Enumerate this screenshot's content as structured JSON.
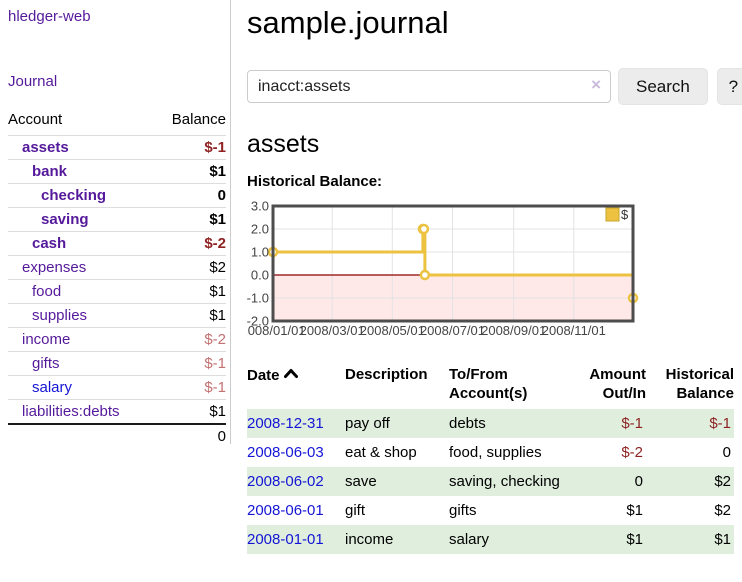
{
  "sidebar": {
    "brand": "hledger-web",
    "journal_link": "Journal",
    "accounts_table": {
      "headers": {
        "account": "Account",
        "balance": "Balance"
      },
      "rows": [
        {
          "name": "assets",
          "balance": "$-1",
          "depth": 1,
          "bold": true
        },
        {
          "name": "bank",
          "balance": "$1",
          "depth": 2,
          "bold": true
        },
        {
          "name": "checking",
          "balance": "0",
          "depth": 3,
          "bold": true
        },
        {
          "name": "saving",
          "balance": "$1",
          "depth": 3,
          "bold": true
        },
        {
          "name": "cash",
          "balance": "$-2",
          "depth": 2,
          "bold": true
        },
        {
          "name": "expenses",
          "balance": "$2",
          "depth": 1,
          "bold": false
        },
        {
          "name": "food",
          "balance": "$1",
          "depth": 2,
          "bold": false
        },
        {
          "name": "supplies",
          "balance": "$1",
          "depth": 2,
          "bold": false
        },
        {
          "name": "income",
          "balance": "$-2",
          "depth": 1,
          "bold": false
        },
        {
          "name": "gifts",
          "balance": "$-1",
          "depth": 2,
          "bold": false
        },
        {
          "name": "salary",
          "balance": "$-1",
          "depth": 2,
          "bold": false
        },
        {
          "name": "liabilities:debts",
          "balance": "$1",
          "depth": 1,
          "bold": false
        }
      ],
      "total": "0"
    }
  },
  "header": {
    "title": "sample.journal"
  },
  "search": {
    "value": "inacct:assets",
    "clear_icon": "×",
    "search_button": "Search",
    "help_button": "?"
  },
  "account_page": {
    "title": "assets",
    "chart_label": "Historical Balance:"
  },
  "chart_data": {
    "type": "line",
    "title": "Historical Balance",
    "steps": true,
    "xlim": [
      "2008-01-01",
      "2008-12-31"
    ],
    "ylim": [
      -2,
      3
    ],
    "grid": true,
    "legend": {
      "position": "top-right",
      "label": "$"
    },
    "series": [
      {
        "name": "$",
        "color": "#edc240",
        "points": [
          {
            "x": "2008-01-01",
            "y": 1
          },
          {
            "x": "2008-06-01",
            "y": 2
          },
          {
            "x": "2008-06-02",
            "y": 2
          },
          {
            "x": "2008-06-03",
            "y": 0
          },
          {
            "x": "2008-12-31",
            "y": -1
          }
        ]
      }
    ],
    "y_ticks": [
      {
        "v": 3,
        "label": "3.0"
      },
      {
        "v": 2,
        "label": "2.0"
      },
      {
        "v": 1,
        "label": "1.0"
      },
      {
        "v": 0,
        "label": "0.0"
      },
      {
        "v": -1,
        "label": "-1.0"
      },
      {
        "v": -2,
        "label": "-2.0"
      }
    ],
    "x_ticks": [
      {
        "v": "2008-01-01",
        "label": "2008/01/01"
      },
      {
        "v": "2008-03-01",
        "label": "2008/03/01"
      },
      {
        "v": "2008-05-01",
        "label": "2008/05/01"
      },
      {
        "v": "2008-07-01",
        "label": "2008/07/01"
      },
      {
        "v": "2008-09-01",
        "label": "2008/09/01"
      },
      {
        "v": "2008-11-01",
        "label": "2008/11/01"
      }
    ],
    "negative_region_color": "rgba(255,0,0,0.09)",
    "zero_line_color": "#8b0000",
    "grid_color": "#e3e3e3",
    "border_color": "#4d4d4d"
  },
  "register_table": {
    "headers": {
      "date": "Date",
      "description": "Description",
      "tofrom": "To/From Account(s)",
      "amount": "Amount Out/In",
      "historical": "Historical Balance"
    },
    "rows": [
      {
        "date": "2008-12-31",
        "description": "pay off",
        "accounts": "debts",
        "amount": "$-1",
        "historical": "$-1"
      },
      {
        "date": "2008-06-03",
        "description": "eat & shop",
        "accounts": "food, supplies",
        "amount": "$-2",
        "historical": "0"
      },
      {
        "date": "2008-06-02",
        "description": "save",
        "accounts": "saving, checking",
        "amount": "0",
        "historical": "$2"
      },
      {
        "date": "2008-06-01",
        "description": "gift",
        "accounts": "gifts",
        "amount": "$1",
        "historical": "$2"
      },
      {
        "date": "2008-01-01",
        "description": "income",
        "accounts": "salary",
        "amount": "$1",
        "historical": "$1"
      }
    ]
  },
  "colors": {
    "link_purple": "#551a9b",
    "link_blue": "#1515d6",
    "negative_strong": "#8f2323",
    "negative_soft": "#c47171",
    "row_stripe_green": "#dfeedd",
    "chart_gold": "#edc240",
    "button_bg": "#ececec"
  }
}
